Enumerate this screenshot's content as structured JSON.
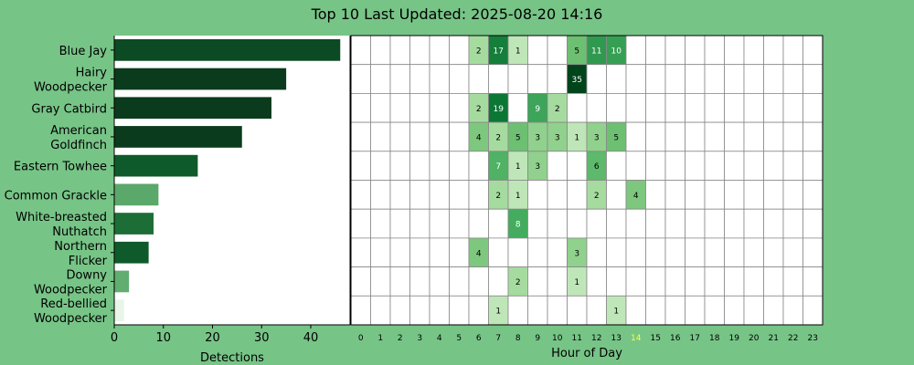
{
  "title": "Top 10 Last Updated: 2025-08-20 14:16",
  "colors": {
    "background": "#77c487",
    "panel": "#ffffff",
    "grid_line": "#888888",
    "highlight_hour": "#ffff33",
    "text": "#000000"
  },
  "chart_data": [
    {
      "type": "bar",
      "orientation": "horizontal",
      "categories": [
        [
          "Blue Jay"
        ],
        [
          "Hairy",
          "Woodpecker"
        ],
        [
          "Gray Catbird"
        ],
        [
          "American",
          "Goldfinch"
        ],
        [
          "Eastern Towhee"
        ],
        [
          "Common Grackle"
        ],
        [
          "White-breasted",
          "Nuthatch"
        ],
        [
          "Northern",
          "Flicker"
        ],
        [
          "Downy",
          "Woodpecker"
        ],
        [
          "Red-bellied",
          "Woodpecker"
        ]
      ],
      "values": [
        46,
        35,
        32,
        26,
        17,
        9,
        8,
        7,
        3,
        2
      ],
      "bar_colors": [
        "#0b4a22",
        "#093b1c",
        "#093b1c",
        "#093b1c",
        "#0e5a2a",
        "#5aa86a",
        "#1d6e36",
        "#0e5a2a",
        "#62ad70",
        "#eaf5ea"
      ],
      "xlabel": "Detections",
      "xlim": [
        0,
        48
      ],
      "xticks": [
        0,
        10,
        20,
        30,
        40
      ]
    },
    {
      "type": "heatmap",
      "xlabel": "Hour of Day",
      "x_categories": [
        "0",
        "1",
        "2",
        "3",
        "4",
        "5",
        "6",
        "7",
        "8",
        "9",
        "10",
        "11",
        "12",
        "13",
        "14",
        "15",
        "16",
        "17",
        "18",
        "19",
        "20",
        "21",
        "22",
        "23"
      ],
      "highlight_hour": "14",
      "rows": [
        [
          null,
          null,
          null,
          null,
          null,
          null,
          2,
          17,
          1,
          null,
          null,
          5,
          11,
          10,
          null,
          null,
          null,
          null,
          null,
          null,
          null,
          null,
          null,
          null
        ],
        [
          null,
          null,
          null,
          null,
          null,
          null,
          null,
          null,
          null,
          null,
          null,
          35,
          null,
          null,
          null,
          null,
          null,
          null,
          null,
          null,
          null,
          null,
          null,
          null
        ],
        [
          null,
          null,
          null,
          null,
          null,
          null,
          2,
          19,
          null,
          9,
          2,
          null,
          null,
          null,
          null,
          null,
          null,
          null,
          null,
          null,
          null,
          null,
          null,
          null
        ],
        [
          null,
          null,
          null,
          null,
          null,
          null,
          4,
          2,
          5,
          3,
          3,
          1,
          3,
          5,
          null,
          null,
          null,
          null,
          null,
          null,
          null,
          null,
          null,
          null
        ],
        [
          null,
          null,
          null,
          null,
          null,
          null,
          null,
          7,
          1,
          3,
          null,
          null,
          6,
          null,
          null,
          null,
          null,
          null,
          null,
          null,
          null,
          null,
          null,
          null
        ],
        [
          null,
          null,
          null,
          null,
          null,
          null,
          null,
          2,
          1,
          null,
          null,
          null,
          2,
          null,
          4,
          null,
          null,
          null,
          null,
          null,
          null,
          null,
          null,
          null
        ],
        [
          null,
          null,
          null,
          null,
          null,
          null,
          null,
          null,
          8,
          null,
          null,
          null,
          null,
          null,
          null,
          null,
          null,
          null,
          null,
          null,
          null,
          null,
          null,
          null
        ],
        [
          null,
          null,
          null,
          null,
          null,
          null,
          4,
          null,
          null,
          null,
          null,
          3,
          null,
          null,
          null,
          null,
          null,
          null,
          null,
          null,
          null,
          null,
          null,
          null
        ],
        [
          null,
          null,
          null,
          null,
          null,
          null,
          null,
          null,
          2,
          null,
          null,
          1,
          null,
          null,
          null,
          null,
          null,
          null,
          null,
          null,
          null,
          null,
          null,
          null
        ],
        [
          null,
          null,
          null,
          null,
          null,
          null,
          null,
          1,
          null,
          null,
          null,
          null,
          null,
          1,
          null,
          null,
          null,
          null,
          null,
          null,
          null,
          null,
          null,
          null
        ]
      ]
    }
  ]
}
